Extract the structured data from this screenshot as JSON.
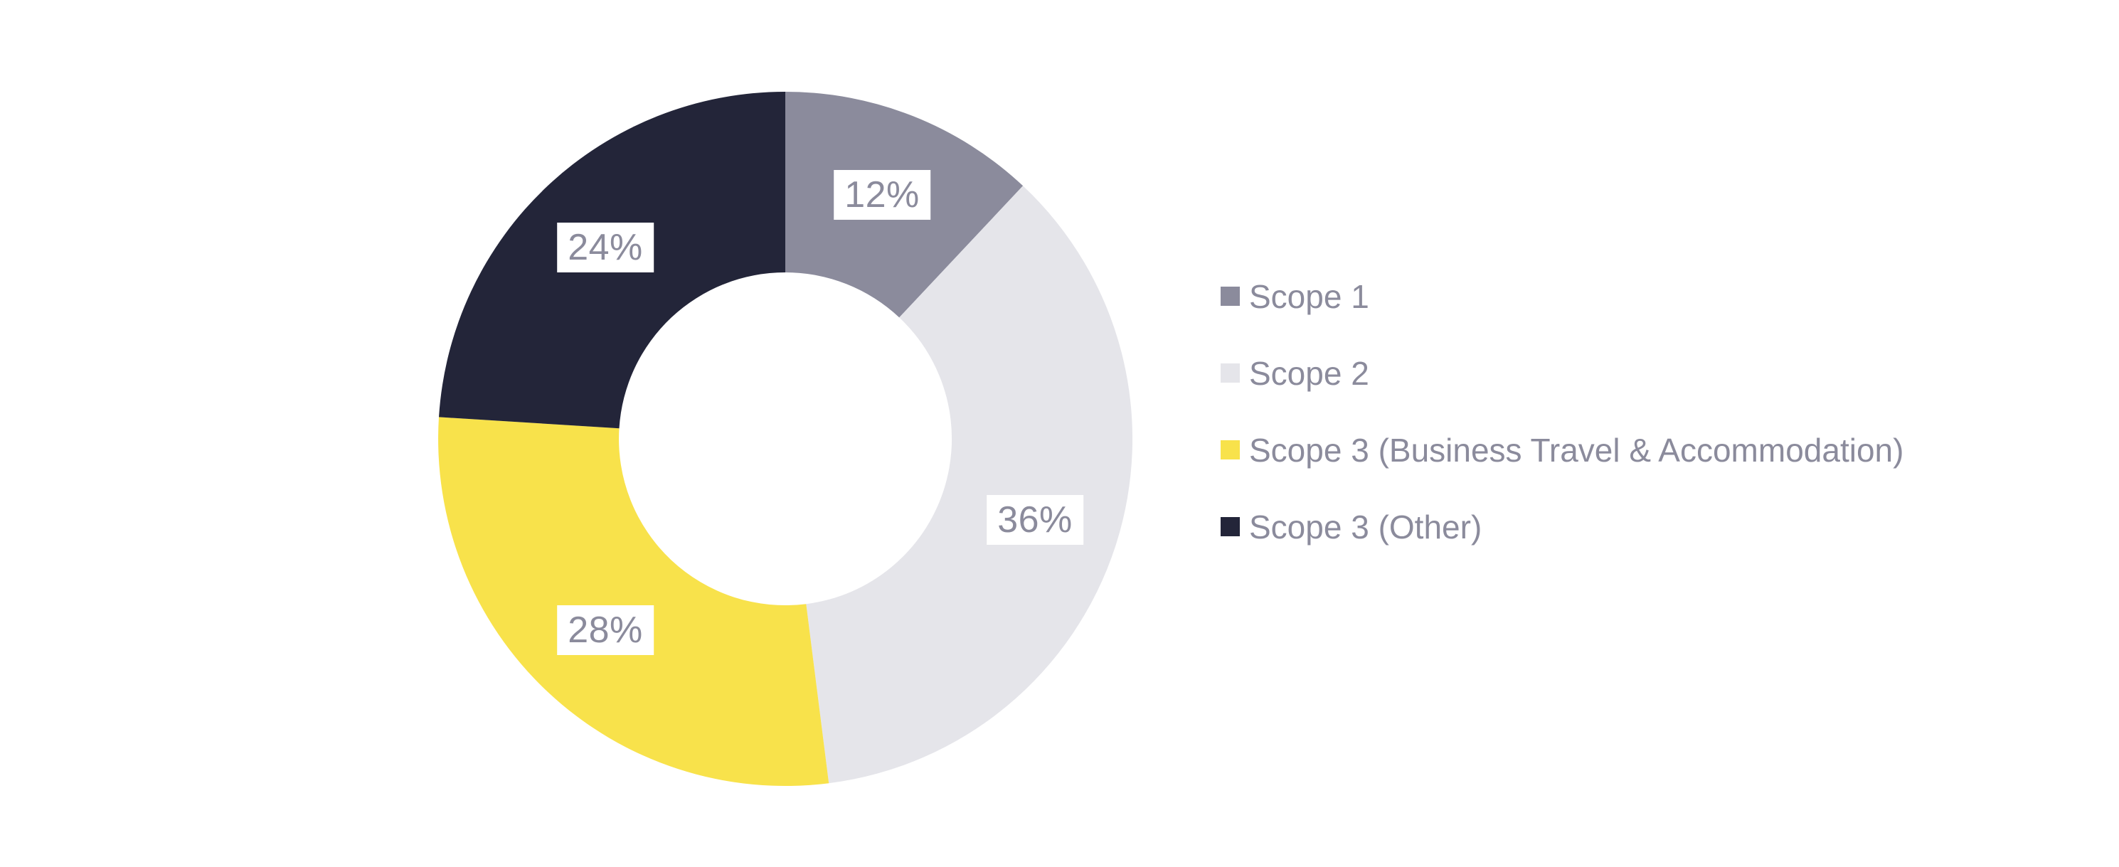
{
  "chart_data": {
    "type": "pie",
    "subtype": "donut",
    "direction": "clockwise",
    "start_angle_deg": 0,
    "inner_radius_ratio": 0.48,
    "legend_position": "right",
    "background_color": "#ffffff",
    "slice_label_style": {
      "text_color": "#8b8b9c",
      "background_color": "#ffffff"
    },
    "slices": [
      {
        "label": "Scope 1",
        "value": 12,
        "pct_label": "12%",
        "color": "#8b8b9c"
      },
      {
        "label": "Scope 2",
        "value": 36,
        "pct_label": "36%",
        "color": "#e5e5ea"
      },
      {
        "label": "Scope 3 (Business Travel & Accommodation)",
        "value": 28,
        "pct_label": "28%",
        "color": "#f8e24b"
      },
      {
        "label": "Scope 3 (Other)",
        "value": 24,
        "pct_label": "24%",
        "color": "#232539"
      }
    ]
  }
}
